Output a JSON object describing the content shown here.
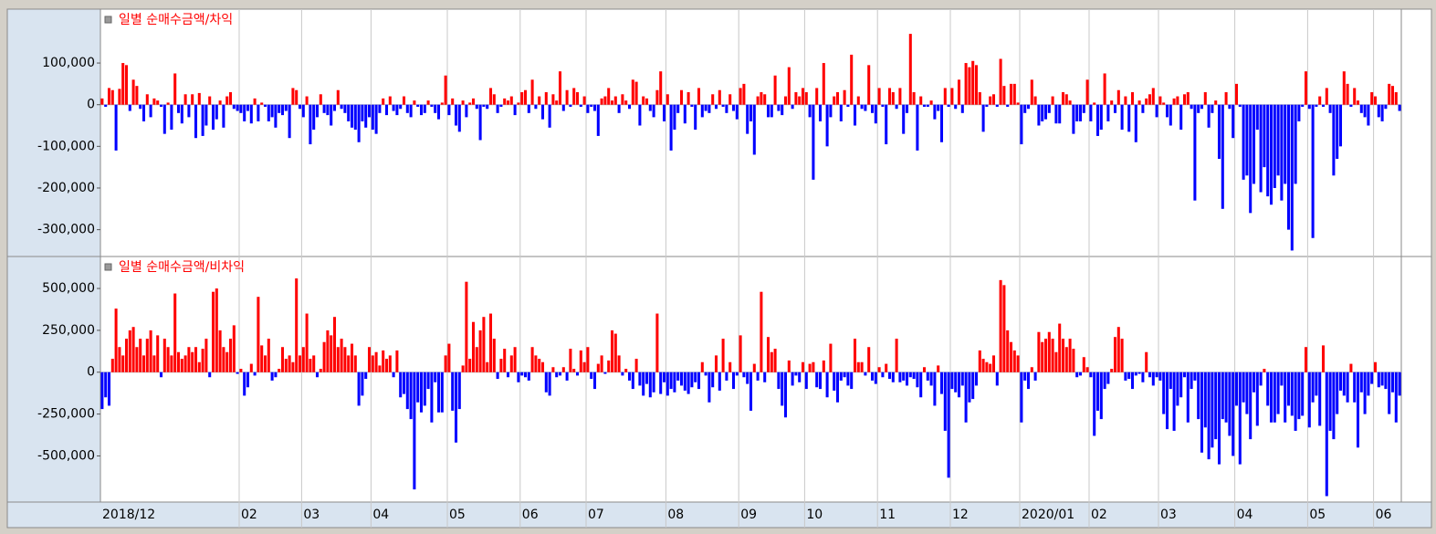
{
  "chart_data": [
    {
      "type": "bar",
      "title": "일별 순매수금액/차익",
      "title_color": "#ff0000",
      "positive_color": "#ff0000",
      "negative_color": "#0000ff",
      "ylim": [
        -360000,
        225000
      ],
      "yticks": [
        {
          "value": 100000,
          "label": "100,000"
        },
        0,
        {
          "value": -100000,
          "label": "-100,000"
        },
        {
          "value": -200000,
          "label": "-200,000"
        },
        {
          "value": -300000,
          "label": "-300,000"
        }
      ],
      "values": [
        15000,
        -5000,
        40000,
        35000,
        -110000,
        38000,
        100000,
        95000,
        -15000,
        60000,
        45000,
        -10000,
        -40000,
        25000,
        -30000,
        15000,
        10000,
        -5000,
        -70000,
        5000,
        -60000,
        75000,
        -20000,
        -45000,
        25000,
        -30000,
        25000,
        -80000,
        28000,
        -75000,
        -50000,
        20000,
        -60000,
        -35000,
        10000,
        -55000,
        20000,
        30000,
        -10000,
        -15000,
        -20000,
        -40000,
        -15000,
        -45000,
        15000,
        -40000,
        5000,
        -5000,
        -40000,
        -30000,
        -55000,
        -20000,
        -25000,
        -15000,
        -80000,
        40000,
        35000,
        -10000,
        -30000,
        20000,
        -95000,
        -60000,
        -30000,
        25000,
        -20000,
        -25000,
        -50000,
        -15000,
        35000,
        -10000,
        -20000,
        -40000,
        -55000,
        -60000,
        -90000,
        -40000,
        -55000,
        -30000,
        -60000,
        -70000,
        -20000,
        15000,
        -25000,
        20000,
        -15000,
        -25000,
        -10000,
        20000,
        -20000,
        -30000,
        10000,
        -5000,
        -25000,
        -20000,
        10000,
        -5000,
        -20000,
        -35000,
        5000,
        70000,
        -25000,
        15000,
        -50000,
        -65000,
        10000,
        -30000,
        5000,
        15000,
        -10000,
        -85000,
        -5000,
        -10000,
        40000,
        25000,
        -20000,
        -5000,
        15000,
        10000,
        20000,
        -25000,
        5000,
        30000,
        35000,
        -20000,
        60000,
        -10000,
        20000,
        -35000,
        30000,
        -55000,
        25000,
        10000,
        80000,
        -15000,
        35000,
        -5000,
        40000,
        30000,
        -5000,
        20000,
        -20000,
        -5000,
        -15000,
        -75000,
        15000,
        20000,
        40000,
        10000,
        20000,
        -20000,
        25000,
        10000,
        -10000,
        60000,
        55000,
        -50000,
        20000,
        15000,
        -15000,
        -30000,
        35000,
        80000,
        -40000,
        25000,
        -110000,
        -60000,
        -20000,
        35000,
        -45000,
        30000,
        -5000,
        -60000,
        40000,
        -30000,
        -15000,
        -20000,
        25000,
        -10000,
        35000,
        -5000,
        -20000,
        25000,
        -15000,
        -35000,
        40000,
        50000,
        -70000,
        -40000,
        -120000,
        20000,
        30000,
        25000,
        -30000,
        -30000,
        70000,
        -15000,
        -25000,
        20000,
        90000,
        -10000,
        30000,
        20000,
        40000,
        30000,
        -30000,
        -180000,
        40000,
        -40000,
        100000,
        -100000,
        -30000,
        20000,
        30000,
        -40000,
        35000,
        -5000,
        120000,
        -50000,
        20000,
        -10000,
        -15000,
        95000,
        -20000,
        -45000,
        40000,
        -5000,
        -95000,
        40000,
        30000,
        -10000,
        40000,
        -70000,
        -20000,
        170000,
        30000,
        -110000,
        20000,
        -5000,
        -5000,
        10000,
        -35000,
        -15000,
        -90000,
        40000,
        -5000,
        40000,
        -10000,
        60000,
        -20000,
        100000,
        90000,
        105000,
        95000,
        30000,
        -65000,
        -5000,
        20000,
        25000,
        -5000,
        110000,
        45000,
        -5000,
        50000,
        50000,
        5000,
        -95000,
        -20000,
        -10000,
        60000,
        20000,
        -50000,
        -40000,
        -35000,
        -20000,
        20000,
        -45000,
        -45000,
        30000,
        25000,
        10000,
        -70000,
        -40000,
        -40000,
        -20000,
        60000,
        -40000,
        5000,
        -75000,
        -60000,
        75000,
        -40000,
        10000,
        -20000,
        35000,
        -60000,
        20000,
        -65000,
        30000,
        -90000,
        10000,
        -20000,
        15000,
        25000,
        40000,
        -30000,
        20000,
        5000,
        -30000,
        -50000,
        15000,
        20000,
        -60000,
        25000,
        30000,
        -10000,
        -230000,
        -20000,
        -10000,
        30000,
        -55000,
        -20000,
        10000,
        -130000,
        -250000,
        30000,
        -10000,
        -80000,
        50000,
        -5000,
        -180000,
        -170000,
        -260000,
        -190000,
        -60000,
        -210000,
        -150000,
        -220000,
        -240000,
        -200000,
        -170000,
        -230000,
        -190000,
        -300000,
        -350000,
        -190000,
        -40000,
        -5000,
        80000,
        -10000,
        -320000,
        -5000,
        20000,
        -5000,
        40000,
        -20000,
        -170000,
        -130000,
        -100000,
        80000,
        50000,
        -5000,
        40000,
        10000,
        -20000,
        -30000,
        -50000,
        30000,
        20000,
        -30000,
        -40000,
        -10000,
        50000,
        45000,
        30000,
        -15000
      ]
    },
    {
      "type": "bar",
      "title": "일별 순매수금액/비차익",
      "title_color": "#ff0000",
      "positive_color": "#ff0000",
      "negative_color": "#0000ff",
      "ylim": [
        -770000,
        680000
      ],
      "yticks": [
        {
          "value": 500000,
          "label": "500,000"
        },
        {
          "value": 250000,
          "label": "250,000"
        },
        0,
        {
          "value": -250000,
          "label": "-250,000"
        },
        {
          "value": -500000,
          "label": "-500,000"
        }
      ],
      "categories": [
        "2018/12",
        null,
        null,
        null,
        null,
        null,
        null,
        null,
        null,
        null,
        null,
        null,
        null,
        null,
        null,
        null,
        null,
        null,
        null,
        null,
        null,
        null,
        null,
        null,
        null,
        null,
        null,
        null,
        null,
        null,
        null,
        null,
        null,
        null,
        null,
        null,
        null,
        null,
        null,
        null,
        "02",
        null,
        null,
        null,
        null,
        null,
        null,
        null,
        null,
        null,
        null,
        null,
        null,
        null,
        null,
        null,
        null,
        null,
        "03",
        null,
        null,
        null,
        null,
        null,
        null,
        null,
        null,
        null,
        null,
        null,
        null,
        null,
        null,
        null,
        null,
        null,
        null,
        null,
        "04",
        null,
        null,
        null,
        null,
        null,
        null,
        null,
        null,
        null,
        null,
        null,
        null,
        null,
        null,
        null,
        null,
        null,
        null,
        null,
        null,
        null,
        "05",
        null,
        null,
        null,
        null,
        null,
        null,
        null,
        null,
        null,
        null,
        null,
        null,
        null,
        null,
        null,
        null,
        null,
        null,
        null,
        null,
        "06",
        null,
        null,
        null,
        null,
        null,
        null,
        null,
        null,
        null,
        null,
        null,
        null,
        null,
        null,
        null,
        null,
        null,
        null,
        "07",
        null,
        null,
        null,
        null,
        null,
        null,
        null,
        null,
        null,
        null,
        null,
        null,
        null,
        null,
        null,
        null,
        null,
        null,
        null,
        null,
        null,
        null,
        "08",
        null,
        null,
        null,
        null,
        null,
        null,
        null,
        null,
        null,
        null,
        null,
        null,
        null,
        null,
        null,
        null,
        null,
        null,
        null,
        null,
        "09",
        null,
        null,
        null,
        null,
        null,
        null,
        null,
        null,
        null,
        null,
        null,
        null,
        null,
        null,
        null,
        null,
        null,
        null,
        "10",
        null,
        null,
        null,
        null,
        null,
        null,
        null,
        null,
        null,
        null,
        null,
        null,
        null,
        null,
        null,
        null,
        null,
        null,
        null,
        null,
        "11",
        null,
        null,
        null,
        null,
        null,
        null,
        null,
        null,
        null,
        null,
        null,
        null,
        null,
        null,
        null,
        null,
        null,
        null,
        null,
        null,
        "12",
        null,
        null,
        null,
        null,
        null,
        null,
        null,
        null,
        null,
        null,
        null,
        null,
        null,
        null,
        null,
        null,
        null,
        null,
        null,
        "2020/01",
        null,
        null,
        null,
        null,
        null,
        null,
        null,
        null,
        null,
        null,
        null,
        null,
        null,
        null,
        null,
        null,
        null,
        null,
        null,
        "02",
        null,
        null,
        null,
        null,
        null,
        null,
        null,
        null,
        null,
        null,
        null,
        null,
        null,
        null,
        null,
        null,
        null,
        null,
        null,
        "03",
        null,
        null,
        null,
        null,
        null,
        null,
        null,
        null,
        null,
        null,
        null,
        null,
        null,
        null,
        null,
        null,
        null,
        null,
        null,
        null,
        null,
        "04",
        null,
        null,
        null,
        null,
        null,
        null,
        null,
        null,
        null,
        null,
        null,
        null,
        null,
        null,
        null,
        null,
        null,
        null,
        null,
        null,
        "05",
        null,
        null,
        null,
        null,
        null,
        null,
        null,
        null,
        null,
        null,
        null,
        null,
        null,
        null,
        null,
        null,
        null,
        null,
        "06",
        null,
        null,
        null,
        null,
        null,
        null,
        null
      ],
      "values": [
        -220000,
        -150000,
        -200000,
        80000,
        380000,
        150000,
        100000,
        200000,
        250000,
        270000,
        150000,
        200000,
        100000,
        200000,
        250000,
        100000,
        220000,
        -30000,
        200000,
        150000,
        100000,
        470000,
        120000,
        80000,
        100000,
        150000,
        120000,
        150000,
        60000,
        140000,
        200000,
        -30000,
        480000,
        500000,
        250000,
        150000,
        120000,
        200000,
        280000,
        -10000,
        20000,
        -140000,
        -90000,
        50000,
        -20000,
        450000,
        160000,
        100000,
        200000,
        -50000,
        -30000,
        20000,
        150000,
        80000,
        100000,
        60000,
        560000,
        100000,
        150000,
        350000,
        80000,
        100000,
        -30000,
        20000,
        180000,
        250000,
        220000,
        330000,
        150000,
        200000,
        150000,
        100000,
        170000,
        100000,
        -200000,
        -140000,
        -40000,
        150000,
        100000,
        120000,
        40000,
        130000,
        80000,
        100000,
        -30000,
        130000,
        -150000,
        -130000,
        -220000,
        -280000,
        -700000,
        -180000,
        -240000,
        -200000,
        -100000,
        -300000,
        -60000,
        -240000,
        -240000,
        100000,
        170000,
        -230000,
        -420000,
        -220000,
        40000,
        540000,
        80000,
        300000,
        150000,
        250000,
        330000,
        60000,
        350000,
        200000,
        -40000,
        80000,
        140000,
        -30000,
        100000,
        150000,
        -60000,
        -20000,
        -30000,
        -50000,
        150000,
        100000,
        80000,
        60000,
        -120000,
        -140000,
        30000,
        -30000,
        -20000,
        30000,
        -50000,
        140000,
        20000,
        -20000,
        130000,
        60000,
        150000,
        -40000,
        -100000,
        50000,
        100000,
        -10000,
        70000,
        250000,
        230000,
        100000,
        -20000,
        20000,
        -50000,
        -100000,
        80000,
        -80000,
        -140000,
        -70000,
        -150000,
        -120000,
        350000,
        -130000,
        -60000,
        -140000,
        -100000,
        -120000,
        -50000,
        -80000,
        -110000,
        -130000,
        -90000,
        -60000,
        -100000,
        60000,
        -20000,
        -180000,
        -90000,
        100000,
        -110000,
        200000,
        -50000,
        60000,
        -100000,
        -20000,
        220000,
        -30000,
        -70000,
        -230000,
        50000,
        -50000,
        480000,
        -60000,
        210000,
        120000,
        140000,
        -100000,
        -200000,
        -270000,
        70000,
        -80000,
        -20000,
        -60000,
        60000,
        -100000,
        50000,
        60000,
        -90000,
        -100000,
        70000,
        -150000,
        170000,
        -110000,
        -180000,
        -50000,
        -30000,
        -80000,
        -100000,
        200000,
        60000,
        60000,
        -20000,
        150000,
        -50000,
        -70000,
        30000,
        -30000,
        50000,
        -40000,
        -60000,
        200000,
        -60000,
        -50000,
        -80000,
        -30000,
        -40000,
        -90000,
        -150000,
        30000,
        -50000,
        -80000,
        -200000,
        40000,
        -130000,
        -350000,
        -630000,
        -100000,
        -120000,
        -150000,
        -80000,
        -300000,
        -180000,
        -160000,
        -80000,
        130000,
        80000,
        60000,
        50000,
        100000,
        -80000,
        550000,
        520000,
        250000,
        180000,
        130000,
        100000,
        -300000,
        -50000,
        -100000,
        30000,
        -50000,
        240000,
        180000,
        200000,
        240000,
        200000,
        120000,
        290000,
        200000,
        150000,
        200000,
        140000,
        -30000,
        -20000,
        90000,
        30000,
        -30000,
        -380000,
        -230000,
        -280000,
        -100000,
        -70000,
        20000,
        210000,
        270000,
        200000,
        -50000,
        -40000,
        -100000,
        -20000,
        -10000,
        -60000,
        120000,
        -30000,
        -80000,
        -30000,
        -50000,
        -250000,
        -340000,
        -100000,
        -350000,
        -200000,
        -150000,
        -30000,
        -300000,
        -100000,
        -50000,
        -280000,
        -480000,
        -330000,
        -520000,
        -450000,
        -400000,
        -550000,
        -280000,
        -300000,
        -380000,
        -500000,
        -200000,
        -550000,
        -180000,
        -250000,
        -400000,
        -120000,
        -320000,
        -80000,
        20000,
        -200000,
        -300000,
        -300000,
        -250000,
        -80000,
        -300000,
        -200000,
        -260000,
        -350000,
        -280000,
        -260000,
        150000,
        -330000,
        -180000,
        -140000,
        -320000,
        160000,
        -740000,
        -350000,
        -400000,
        -250000,
        -110000,
        -140000,
        -180000,
        50000,
        -180000,
        -450000,
        -120000,
        -250000,
        -140000,
        -70000,
        60000,
        -90000,
        -80000,
        -100000,
        -250000,
        -120000,
        -300000,
        -140000
      ]
    }
  ]
}
